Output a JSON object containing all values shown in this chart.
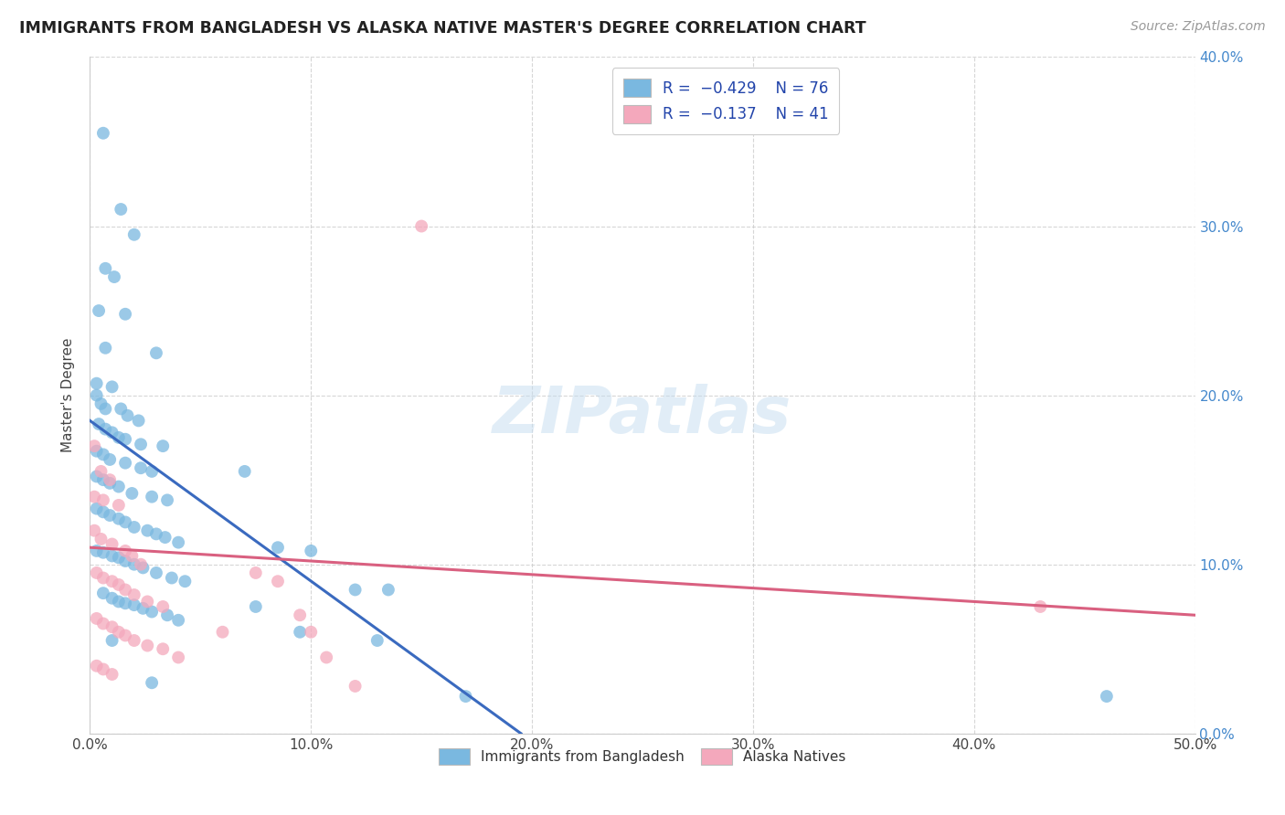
{
  "title": "IMMIGRANTS FROM BANGLADESH VS ALASKA NATIVE MASTER'S DEGREE CORRELATION CHART",
  "source": "Source: ZipAtlas.com",
  "ylabel": "Master's Degree",
  "xlim": [
    0.0,
    0.5
  ],
  "ylim": [
    0.0,
    0.4
  ],
  "x_ticks": [
    0.0,
    0.1,
    0.2,
    0.3,
    0.4,
    0.5
  ],
  "x_tick_labels": [
    "0.0%",
    "10.0%",
    "20.0%",
    "30.0%",
    "40.0%",
    "50.0%"
  ],
  "y_ticks": [
    0.0,
    0.1,
    0.2,
    0.3,
    0.4
  ],
  "y_tick_labels_right": [
    "0.0%",
    "10.0%",
    "20.0%",
    "30.0%",
    "40.0%"
  ],
  "watermark": "ZIPatlas",
  "legend_label1": "Immigrants from Bangladesh",
  "legend_label2": "Alaska Natives",
  "color_blue": "#7ab8e0",
  "color_pink": "#f4a8bc",
  "trendline_blue": "#3a6abf",
  "trendline_pink": "#d96080",
  "background": "#ffffff",
  "grid_color": "#cccccc",
  "blue_scatter": [
    [
      0.006,
      0.355
    ],
    [
      0.014,
      0.31
    ],
    [
      0.02,
      0.295
    ],
    [
      0.007,
      0.275
    ],
    [
      0.011,
      0.27
    ],
    [
      0.004,
      0.25
    ],
    [
      0.016,
      0.248
    ],
    [
      0.007,
      0.228
    ],
    [
      0.03,
      0.225
    ],
    [
      0.003,
      0.207
    ],
    [
      0.01,
      0.205
    ],
    [
      0.003,
      0.2
    ],
    [
      0.005,
      0.195
    ],
    [
      0.007,
      0.192
    ],
    [
      0.014,
      0.192
    ],
    [
      0.017,
      0.188
    ],
    [
      0.022,
      0.185
    ],
    [
      0.004,
      0.183
    ],
    [
      0.007,
      0.18
    ],
    [
      0.01,
      0.178
    ],
    [
      0.013,
      0.175
    ],
    [
      0.016,
      0.174
    ],
    [
      0.023,
      0.171
    ],
    [
      0.033,
      0.17
    ],
    [
      0.003,
      0.167
    ],
    [
      0.006,
      0.165
    ],
    [
      0.009,
      0.162
    ],
    [
      0.016,
      0.16
    ],
    [
      0.023,
      0.157
    ],
    [
      0.028,
      0.155
    ],
    [
      0.003,
      0.152
    ],
    [
      0.006,
      0.15
    ],
    [
      0.009,
      0.148
    ],
    [
      0.013,
      0.146
    ],
    [
      0.019,
      0.142
    ],
    [
      0.028,
      0.14
    ],
    [
      0.035,
      0.138
    ],
    [
      0.003,
      0.133
    ],
    [
      0.006,
      0.131
    ],
    [
      0.009,
      0.129
    ],
    [
      0.013,
      0.127
    ],
    [
      0.016,
      0.125
    ],
    [
      0.02,
      0.122
    ],
    [
      0.026,
      0.12
    ],
    [
      0.03,
      0.118
    ],
    [
      0.034,
      0.116
    ],
    [
      0.04,
      0.113
    ],
    [
      0.003,
      0.108
    ],
    [
      0.006,
      0.107
    ],
    [
      0.01,
      0.105
    ],
    [
      0.013,
      0.104
    ],
    [
      0.016,
      0.102
    ],
    [
      0.02,
      0.1
    ],
    [
      0.024,
      0.098
    ],
    [
      0.03,
      0.095
    ],
    [
      0.037,
      0.092
    ],
    [
      0.043,
      0.09
    ],
    [
      0.006,
      0.083
    ],
    [
      0.01,
      0.08
    ],
    [
      0.013,
      0.078
    ],
    [
      0.016,
      0.077
    ],
    [
      0.02,
      0.076
    ],
    [
      0.024,
      0.074
    ],
    [
      0.028,
      0.072
    ],
    [
      0.035,
      0.07
    ],
    [
      0.04,
      0.067
    ],
    [
      0.07,
      0.155
    ],
    [
      0.085,
      0.11
    ],
    [
      0.1,
      0.108
    ],
    [
      0.12,
      0.085
    ],
    [
      0.135,
      0.085
    ],
    [
      0.01,
      0.055
    ],
    [
      0.028,
      0.03
    ],
    [
      0.075,
      0.075
    ],
    [
      0.095,
      0.06
    ],
    [
      0.13,
      0.055
    ],
    [
      0.17,
      0.022
    ],
    [
      0.46,
      0.022
    ]
  ],
  "pink_scatter": [
    [
      0.002,
      0.17
    ],
    [
      0.005,
      0.155
    ],
    [
      0.009,
      0.15
    ],
    [
      0.002,
      0.14
    ],
    [
      0.006,
      0.138
    ],
    [
      0.013,
      0.135
    ],
    [
      0.002,
      0.12
    ],
    [
      0.005,
      0.115
    ],
    [
      0.01,
      0.112
    ],
    [
      0.016,
      0.108
    ],
    [
      0.019,
      0.105
    ],
    [
      0.023,
      0.1
    ],
    [
      0.003,
      0.095
    ],
    [
      0.006,
      0.092
    ],
    [
      0.01,
      0.09
    ],
    [
      0.013,
      0.088
    ],
    [
      0.016,
      0.085
    ],
    [
      0.02,
      0.082
    ],
    [
      0.026,
      0.078
    ],
    [
      0.033,
      0.075
    ],
    [
      0.003,
      0.068
    ],
    [
      0.006,
      0.065
    ],
    [
      0.01,
      0.063
    ],
    [
      0.013,
      0.06
    ],
    [
      0.016,
      0.058
    ],
    [
      0.02,
      0.055
    ],
    [
      0.026,
      0.052
    ],
    [
      0.033,
      0.05
    ],
    [
      0.04,
      0.045
    ],
    [
      0.003,
      0.04
    ],
    [
      0.006,
      0.038
    ],
    [
      0.01,
      0.035
    ],
    [
      0.06,
      0.06
    ],
    [
      0.075,
      0.095
    ],
    [
      0.085,
      0.09
    ],
    [
      0.095,
      0.07
    ],
    [
      0.1,
      0.06
    ],
    [
      0.107,
      0.045
    ],
    [
      0.12,
      0.028
    ],
    [
      0.15,
      0.3
    ],
    [
      0.43,
      0.075
    ]
  ],
  "blue_trend_x": [
    0.0,
    0.195
  ],
  "blue_trend_y": [
    0.185,
    0.0
  ],
  "pink_trend_x": [
    0.0,
    0.5
  ],
  "pink_trend_y": [
    0.11,
    0.07
  ]
}
